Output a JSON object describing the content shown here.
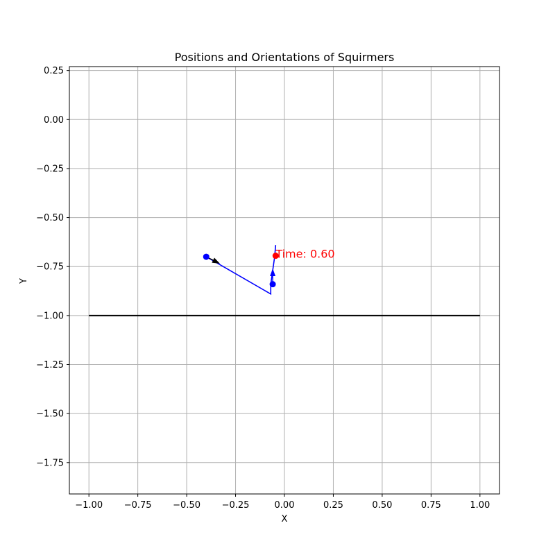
{
  "chart_data": {
    "type": "scatter",
    "title": "Positions and Orientations of Squirmers",
    "xlabel": "X",
    "ylabel": "Y",
    "xlim": [
      -1.1,
      1.1
    ],
    "ylim": [
      -1.91,
      0.27
    ],
    "grid": true,
    "x_ticks": [
      -1.0,
      -0.75,
      -0.5,
      -0.25,
      0.0,
      0.25,
      0.5,
      0.75,
      1.0
    ],
    "x_tick_labels": [
      "−1.00",
      "−0.75",
      "−0.50",
      "−0.25",
      "0.00",
      "0.25",
      "0.50",
      "0.75",
      "1.00"
    ],
    "y_ticks": [
      0.25,
      0.0,
      -0.25,
      -0.5,
      -0.75,
      -1.0,
      -1.25,
      -1.5,
      -1.75
    ],
    "y_tick_labels": [
      "0.25",
      "0.00",
      "−0.25",
      "−0.50",
      "−0.75",
      "−1.00",
      "−1.25",
      "−1.50",
      "−1.75"
    ],
    "wall": {
      "x": [
        -1.0,
        1.0
      ],
      "y": -1.0,
      "color": "#000000"
    },
    "trajectory": {
      "color": "#0000ff",
      "x": [
        -0.4,
        -0.07,
        -0.07,
        -0.05,
        -0.045
      ],
      "y": [
        -0.7,
        -0.89,
        -0.84,
        -0.7,
        -0.64
      ]
    },
    "squirmers": [
      {
        "x": -0.4,
        "y": -0.7,
        "color": "#0000ff",
        "arrow": {
          "dx": 0.07,
          "dy": -0.035,
          "color": "#000000"
        }
      },
      {
        "x": -0.06,
        "y": -0.84,
        "color": "#0000ff",
        "arrow": {
          "dx": 0.0,
          "dy": 0.08,
          "color": "#0000ff"
        }
      },
      {
        "x": -0.045,
        "y": -0.695,
        "color": "#ff0000",
        "arrow": null
      }
    ],
    "annotation": {
      "text": "Time: 0.60",
      "x": -0.045,
      "y": -0.705,
      "color": "#ff0000"
    }
  }
}
